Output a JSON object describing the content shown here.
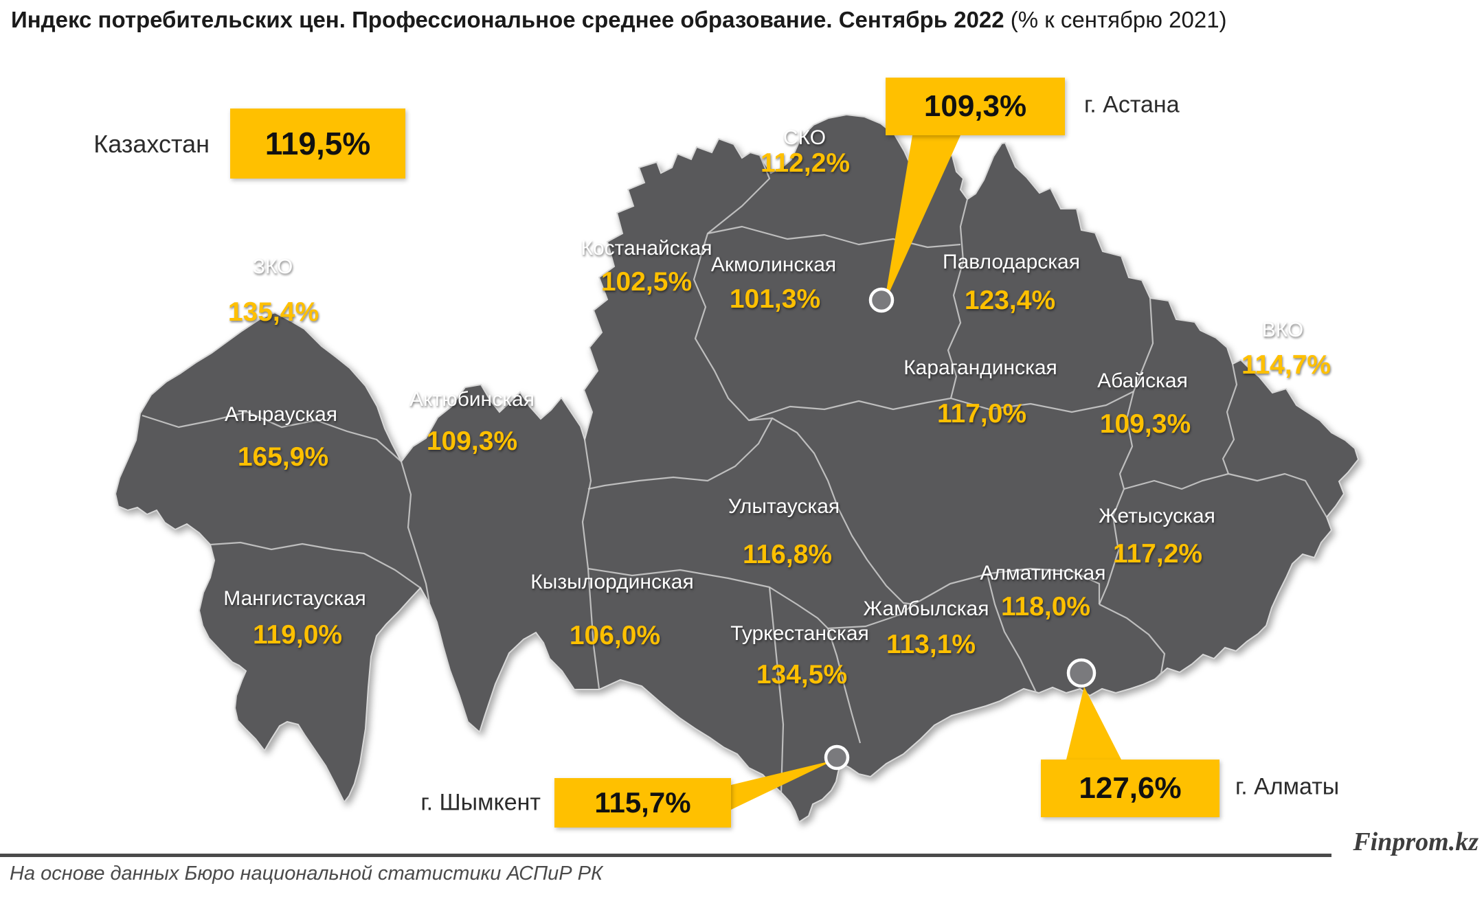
{
  "title": {
    "main": "Индекс потребительских цен. Профессиональное среднее образование. Сентябрь 2022",
    "suffix": " (% к сентябрю 2021)"
  },
  "country": {
    "label": "Казахстан",
    "value": "119,5%"
  },
  "regions": [
    {
      "name": "СКО",
      "value": "112,2%"
    },
    {
      "name": "Костанайская",
      "value": "102,5%"
    },
    {
      "name": "Акмолинская",
      "value": "101,3%"
    },
    {
      "name": "Павлодарская",
      "value": "123,4%"
    },
    {
      "name": "ЗКО",
      "value": "135,4%"
    },
    {
      "name": "Атырауская",
      "value": "165,9%"
    },
    {
      "name": "Актюбинская",
      "value": "109,3%"
    },
    {
      "name": "Мангистауская",
      "value": "119,0%"
    },
    {
      "name": "Кызылординская",
      "value": "106,0%"
    },
    {
      "name": "Улытауская",
      "value": "116,8%"
    },
    {
      "name": "Карагандинская",
      "value": "117,0%"
    },
    {
      "name": "Абайская",
      "value": "109,3%"
    },
    {
      "name": "ВКО",
      "value": "114,7%"
    },
    {
      "name": "Туркестанская",
      "value": "134,5%"
    },
    {
      "name": "Жамбылская",
      "value": "113,1%"
    },
    {
      "name": "Алматинская",
      "value": "118,0%"
    },
    {
      "name": "Жетысуская",
      "value": "117,2%"
    }
  ],
  "cities": [
    {
      "name": "г. Астана",
      "value": "109,3%"
    },
    {
      "name": "г. Шымкент",
      "value": "115,7%"
    },
    {
      "name": "г. Алматы",
      "value": "127,6%"
    }
  ],
  "footer": {
    "brand": "Finprom.kz",
    "source": "На основе данных Бюро национальной статистики АСПиР РК"
  },
  "colors": {
    "accent": "#FFC000",
    "map_fill": "#59595B",
    "border": "#C9C9C9",
    "value_text": "#FFC000",
    "label_text": "#FFFFFF"
  },
  "chart_data": {
    "type": "table",
    "title": "Индекс потребительских цен. Профессиональное среднее образование. Сентябрь 2022 (% к сентябрю 2021)",
    "categories": [
      "Казахстан",
      "СКО",
      "Костанайская",
      "Акмолинская",
      "Павлодарская",
      "ЗКО",
      "Атырауская",
      "Актюбинская",
      "Мангистауская",
      "Кызылординская",
      "Улытауская",
      "Карагандинская",
      "Абайская",
      "ВКО",
      "Туркестанская",
      "Жамбылская",
      "Алматинская",
      "Жетысуская",
      "г. Астана",
      "г. Шымкент",
      "г. Алматы"
    ],
    "values": [
      119.5,
      112.2,
      102.5,
      101.3,
      123.4,
      135.4,
      165.9,
      109.3,
      119.0,
      106.0,
      116.8,
      117.0,
      109.3,
      114.7,
      134.5,
      113.1,
      118.0,
      117.2,
      109.3,
      115.7,
      127.6
    ],
    "unit": "% к сентябрю 2021"
  }
}
